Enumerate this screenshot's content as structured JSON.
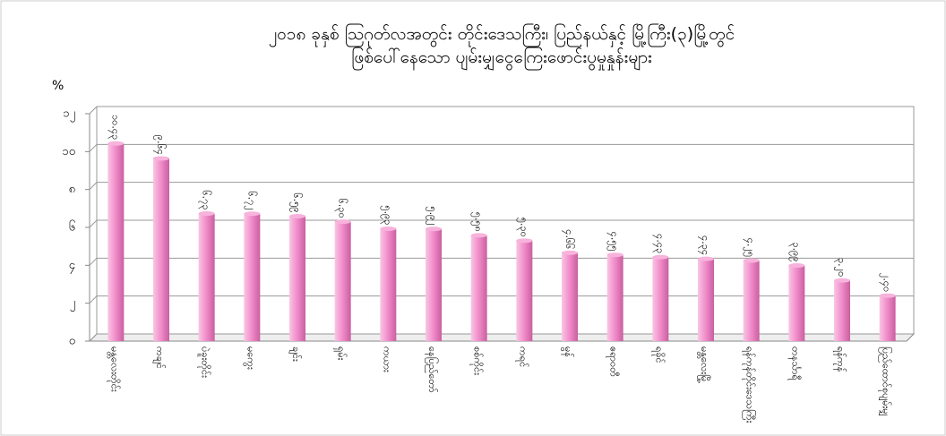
{
  "chart_data": {
    "type": "bar",
    "title": "၂၀၁၈ ခုနှစ် ဩဂုတ်လအတွင်း တိုင်းဒေသကြီး၊ ပြည်နယ်နှင့် မြို့ကြီး(၃)မြို့တွင်",
    "subtitle": "ဖြစ်ပေါ်နေသော ပျမ်းမျှငွေကြေးဖောင်းပွမှုနှုန်းများ",
    "y_label": "%",
    "categories": [
      "မန္တလေးတိုင်း",
      "ကချင်",
      "ပဲခူးတိုင်း",
      "မကွေး",
      "ချင်း",
      "ရှမ်း",
      "ကယား",
      "နေပြည်တော်",
      "စစ်ကိုင်း",
      "ကရင်",
      "မွန်",
      "ဧရာဝတီ",
      "ရခိုင်",
      "မန္တလေးမြို့",
      "ရန်ကုန်တိုင်းဒေသကြီး",
      "တနင်္သာရီ",
      "ရန်ကုန်",
      "ပြည်ထောင်စုပျမ်းမျှ"
    ],
    "values": [
      10.43,
      9.64,
      6.73,
      6.72,
      6.59,
      6.3,
      5.93,
      5.92,
      5.58,
      5.3,
      4.66,
      4.55,
      4.43,
      4.34,
      4.25,
      3.99,
      3.2,
      2.4
    ],
    "value_labels": [
      "၁၀.၄၃",
      "၉.၆၄",
      "၆.၇၃",
      "၆.၇၂",
      "၆.၅၉",
      "၆.၃၀",
      "၅.၉၃",
      "၅.၉၂",
      "၅.၅၈",
      "၅.၃၀",
      "၄.၆၆",
      "၄.၅၅",
      "၄.၄၃",
      "၄.၃၄",
      "၄.၂၅",
      "၃.၉၉",
      "၃.၂၀",
      "၂.၄၀"
    ],
    "color": "#f08ac8",
    "ylim": [
      0,
      12
    ],
    "yticks": [
      {
        "value": 0,
        "label": "၀"
      },
      {
        "value": 2,
        "label": "၂"
      },
      {
        "value": 4,
        "label": "၄"
      },
      {
        "value": 6,
        "label": "၆"
      },
      {
        "value": 8,
        "label": "၈"
      },
      {
        "value": 10,
        "label": "၁၀"
      },
      {
        "value": 12,
        "label": "၁၂"
      }
    ],
    "grid": true
  }
}
